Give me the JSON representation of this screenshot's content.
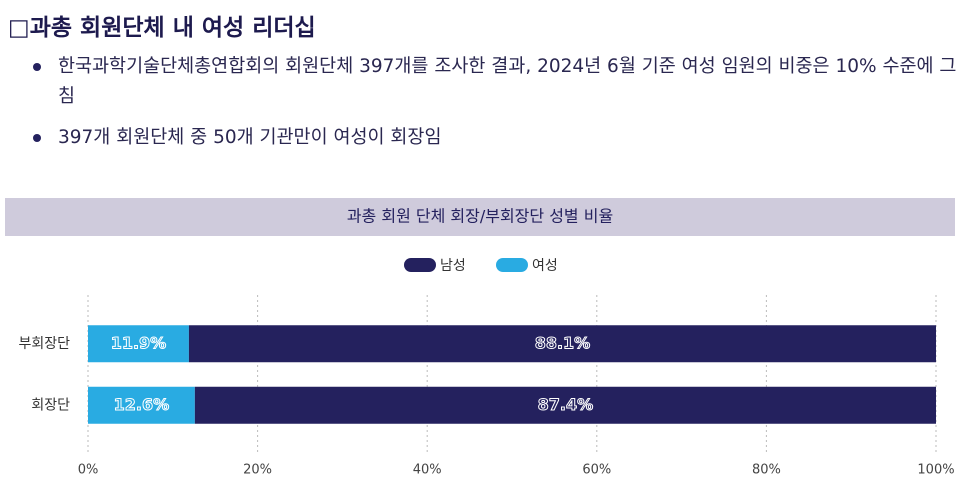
{
  "header": {
    "title": "□과총 회원단체 내 여성 리더십"
  },
  "bullets": [
    "한국과학기술단체총연합회의 회원단체 397개를 조사한 결과, 2024년 6월 기준 여성 임원의 비중은 10% 수준에 그침",
    "397개 회원단체 중 50개 기관만이 여성이 회장임"
  ],
  "chart_data": {
    "type": "stacked-barh",
    "title": "과총 회원 단체 회장/부회장단 성별 비율",
    "categories": [
      "부회장단",
      "회장단"
    ],
    "series": [
      {
        "name": "남성",
        "color": "#24215e",
        "values": [
          88.1,
          87.4
        ],
        "value_labels": [
          "88.1%",
          "87.4%"
        ]
      },
      {
        "name": "여성",
        "color": "#29abe2",
        "values": [
          11.9,
          12.6
        ],
        "value_labels": [
          "11.9%",
          "12.6%"
        ]
      }
    ],
    "xlim": [
      0,
      100
    ],
    "xticks": [
      {
        "value": 0,
        "label": "0%"
      },
      {
        "value": 20,
        "label": "20%"
      },
      {
        "value": 40,
        "label": "40%"
      },
      {
        "value": 60,
        "label": "60%"
      },
      {
        "value": 80,
        "label": "80%"
      },
      {
        "value": 100,
        "label": "100%"
      }
    ],
    "grid": true,
    "legend": "top"
  }
}
